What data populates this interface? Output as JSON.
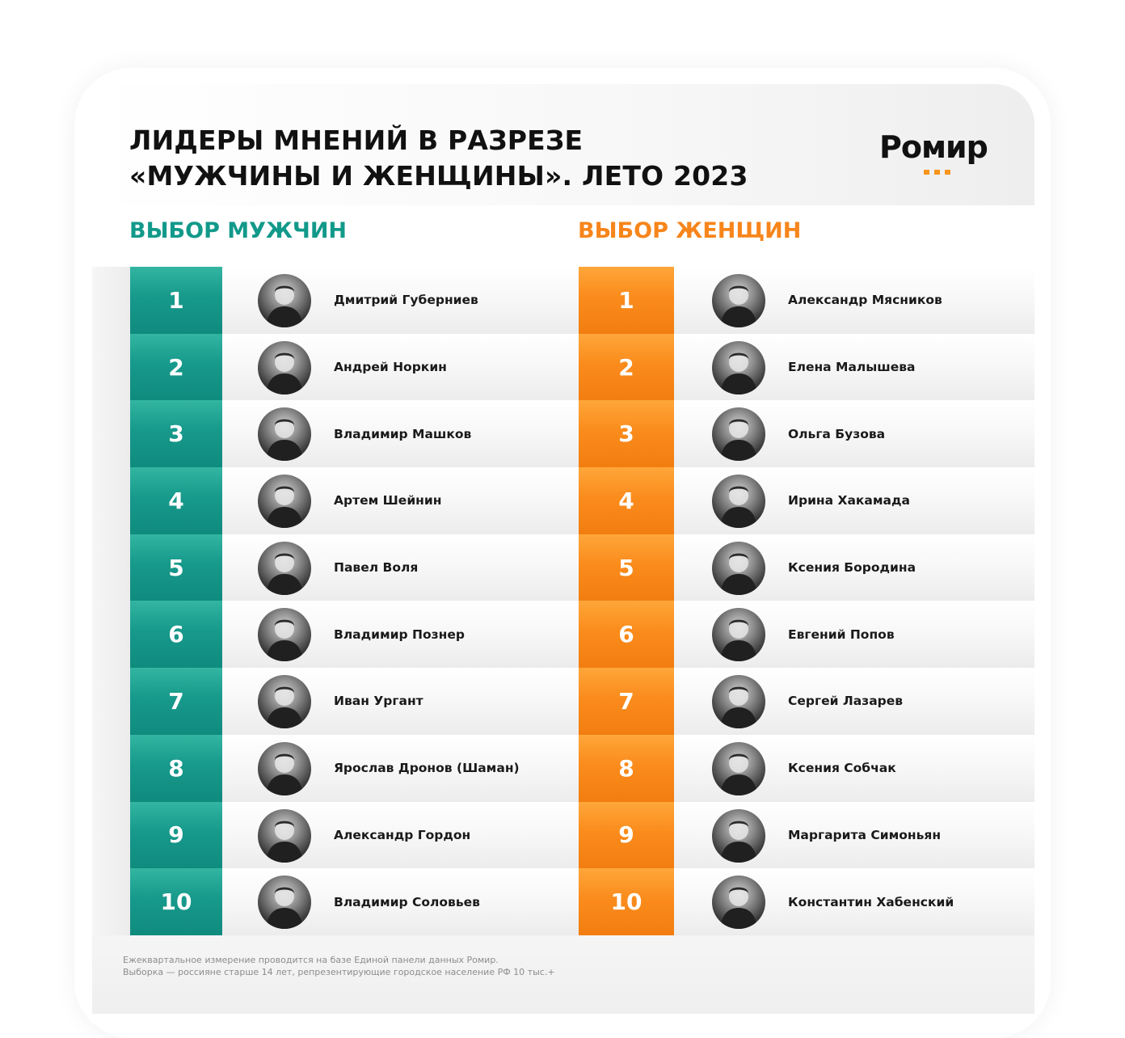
{
  "title": {
    "line1": "ЛИДЕРЫ МНЕНИЙ В РАЗРЕЗЕ",
    "line2": "«МУЖЧИНЫ И ЖЕНЩИНЫ». ЛЕТО 2023"
  },
  "logo": {
    "text": "Ромир"
  },
  "colors": {
    "men": "#12998a",
    "women": "#f7851b"
  },
  "men": {
    "heading": "ВЫБОР МУЖЧИН",
    "items": [
      {
        "rank": "1",
        "name": "Дмитрий Губерниев"
      },
      {
        "rank": "2",
        "name": "Андрей Норкин"
      },
      {
        "rank": "3",
        "name": "Владимир Машков"
      },
      {
        "rank": "4",
        "name": "Артем Шейнин"
      },
      {
        "rank": "5",
        "name": "Павел Воля"
      },
      {
        "rank": "6",
        "name": "Владимир Познер"
      },
      {
        "rank": "7",
        "name": "Иван Ургант"
      },
      {
        "rank": "8",
        "name": "Ярослав Дронов (Шаман)"
      },
      {
        "rank": "9",
        "name": "Александр Гордон"
      },
      {
        "rank": "10",
        "name": "Владимир Соловьев"
      }
    ]
  },
  "women": {
    "heading": "ВЫБОР ЖЕНЩИН",
    "items": [
      {
        "rank": "1",
        "name": "Александр Мясников"
      },
      {
        "rank": "2",
        "name": "Елена Малышева"
      },
      {
        "rank": "3",
        "name": "Ольга Бузова"
      },
      {
        "rank": "4",
        "name": "Ирина Хакамада"
      },
      {
        "rank": "5",
        "name": "Ксения Бородина"
      },
      {
        "rank": "6",
        "name": "Евгений Попов"
      },
      {
        "rank": "7",
        "name": "Сергей Лазарев"
      },
      {
        "rank": "8",
        "name": "Ксения Собчак"
      },
      {
        "rank": "9",
        "name": "Маргарита Симоньян"
      },
      {
        "rank": "10",
        "name": "Константин Хабенский"
      }
    ]
  },
  "footer": {
    "line1": "Ежеквартальное измерение проводится на базе Единой панели данных Ромир.",
    "line2": "Выборка — россияне старше 14 лет, репрезентирующие городское население РФ 10 тыс.+"
  }
}
